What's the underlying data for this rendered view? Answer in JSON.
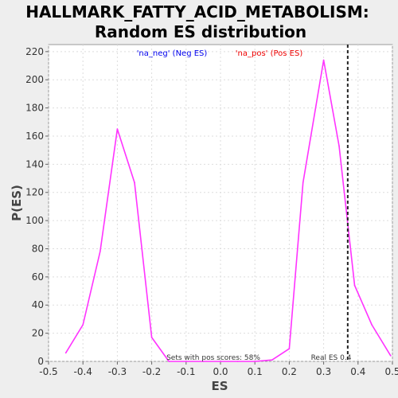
{
  "chart_data": {
    "type": "line",
    "title_line1": "HALLMARK_FATTY_ACID_METABOLISM:",
    "title_line2": "Random ES distribution",
    "xlabel": "ES",
    "ylabel": "P(ES)",
    "xlim": [
      -0.5,
      0.5
    ],
    "ylim": [
      0,
      225
    ],
    "xticks": [
      "-0.5",
      "-0.4",
      "-0.3",
      "-0.2",
      "-0.1",
      "0.0",
      "0.1",
      "0.2",
      "0.3",
      "0.4",
      "0.5"
    ],
    "yticks": [
      "0",
      "20",
      "40",
      "60",
      "80",
      "100",
      "120",
      "140",
      "160",
      "180",
      "200",
      "220"
    ],
    "grid": true,
    "series": [
      {
        "color": "#ff33ff",
        "points": [
          [
            -0.45,
            6
          ],
          [
            -0.4,
            26
          ],
          [
            -0.35,
            78
          ],
          [
            -0.3,
            165
          ],
          [
            -0.25,
            127
          ],
          [
            -0.2,
            17
          ],
          [
            -0.15,
            0
          ],
          [
            -0.1,
            0
          ],
          [
            -0.05,
            0
          ],
          [
            0.0,
            0
          ],
          [
            0.05,
            0
          ],
          [
            0.1,
            0
          ],
          [
            0.15,
            1
          ],
          [
            0.2,
            9
          ],
          [
            0.24,
            127
          ],
          [
            0.3,
            214
          ],
          [
            0.345,
            153
          ],
          [
            0.39,
            54
          ],
          [
            0.44,
            26
          ],
          [
            0.495,
            4
          ]
        ]
      }
    ],
    "legend": {
      "neg_label": "'na_neg' (Neg ES)",
      "neg_color": "#0000ee",
      "pos_label": "'na_pos' (Pos ES)",
      "pos_color": "#ee0000"
    },
    "real_es_value": 0.37,
    "real_es_label": "Real ES 0.4",
    "pos_scores_text": "Sets with pos scores: 58%"
  }
}
